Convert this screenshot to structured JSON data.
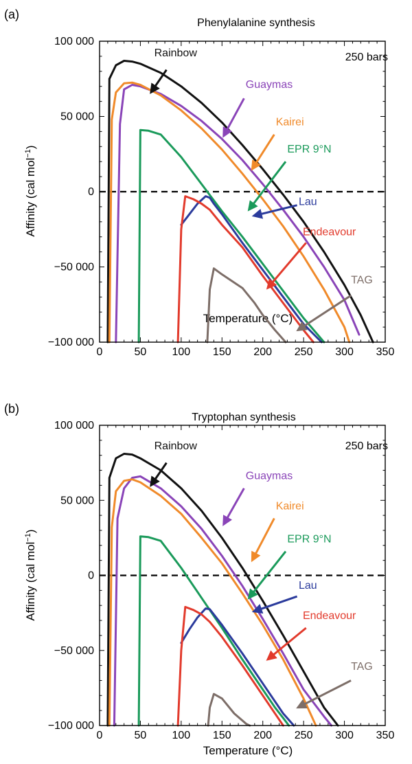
{
  "panels": [
    {
      "panel_label": "(a)",
      "chart_data": {
        "type": "line",
        "title": "Phenylalanine synthesis",
        "annotation": "250 bars",
        "xlabel": "Temperature (°C)",
        "ylabel_main": "Affinity (cal mol",
        "ylabel_sup": "−1",
        "ylabel_end": ")",
        "xlim": [
          0,
          350
        ],
        "ylim": [
          -100000,
          100000
        ],
        "xticks": [
          0,
          50,
          100,
          150,
          200,
          250,
          300,
          350
        ],
        "yticks": [
          -100000,
          -50000,
          0,
          50000,
          100000
        ],
        "ytick_labels": [
          "−100 000",
          "−50 000",
          "0",
          "50 000",
          "100 000"
        ],
        "zero_line": "dashed",
        "series": [
          {
            "name": "Rainbow",
            "color": "#111111",
            "x": [
              10,
              12,
              20,
              30,
              40,
              50,
              75,
              100,
              125,
              150,
              175,
              200,
              225,
              250,
              275,
              300,
              320,
              335
            ],
            "y": [
              -100000,
              75000,
              84000,
              87000,
              86500,
              85000,
              79000,
              70000,
              59000,
              46000,
              31000,
              15000,
              -2000,
              -20000,
              -40000,
              -62000,
              -82000,
              -100000
            ]
          },
          {
            "name": "Guaymas",
            "color": "#8a44b8",
            "x": [
              20,
              25,
              30,
              40,
              50,
              75,
              100,
              125,
              150,
              175,
              200,
              225,
              250,
              275,
              300,
              318
            ],
            "y": [
              -100000,
              45000,
              68000,
              71000,
              70000,
              65000,
              57000,
              47000,
              35000,
              21000,
              5000,
              -12000,
              -30000,
              -50000,
              -72000,
              -95000
            ]
          },
          {
            "name": "Kairei",
            "color": "#f08a2a",
            "x": [
              12,
              15,
              20,
              30,
              40,
              50,
              75,
              100,
              125,
              150,
              175,
              200,
              225,
              250,
              275,
              300,
              306
            ],
            "y": [
              -100000,
              48000,
              66000,
              72000,
              72500,
              71000,
              64000,
              54000,
              42000,
              28000,
              12000,
              -5000,
              -23000,
              -43000,
              -65000,
              -90000,
              -100000
            ]
          },
          {
            "name": "EPR 9°N",
            "color": "#1a9a5a",
            "x": [
              48,
              50,
              60,
              75,
              100,
              125,
              150,
              175,
              200,
              225,
              250,
              275
            ],
            "y": [
              -100000,
              41000,
              40500,
              38000,
              23000,
              5000,
              -13000,
              -30000,
              -48000,
              -66000,
              -84000,
              -100000
            ]
          },
          {
            "name": "Lau",
            "color": "#2b3b9c",
            "x": [
              100,
              110,
              120,
              130,
              135,
              140,
              150,
              175,
              200,
              225,
              250,
              272
            ],
            "y": [
              -22000,
              -15000,
              -8000,
              -3000,
              -4000,
              -8000,
              -15000,
              -34000,
              -52000,
              -70000,
              -88000,
              -100000
            ]
          },
          {
            "name": "Endeavour",
            "color": "#e23a2c",
            "x": [
              96,
              100,
              105,
              115,
              125,
              135,
              150,
              175,
              200,
              225,
              250,
              262
            ],
            "y": [
              -100000,
              -25000,
              -3000,
              -5000,
              -8000,
              -12000,
              -22000,
              -37000,
              -56000,
              -74000,
              -92000,
              -100000
            ]
          },
          {
            "name": "TAG",
            "color": "#7d6e68",
            "x": [
              132,
              135,
              140,
              150,
              175,
              190,
              200,
              215,
              228
            ],
            "y": [
              -100000,
              -65000,
              -51000,
              -55000,
              -64000,
              -74000,
              -82000,
              -92000,
              -100000
            ]
          }
        ],
        "labels": [
          {
            "series": "Rainbow",
            "text": "Rainbow",
            "at": [
              67,
              90000
            ]
          },
          {
            "series": "Guaymas",
            "text": "Guaymas",
            "at": [
              179,
              69000
            ]
          },
          {
            "series": "Kairei",
            "text": "Kairei",
            "at": [
              216,
              44000
            ]
          },
          {
            "series": "EPR 9°N",
            "text": "EPR 9°N",
            "at": [
              230,
              26000
            ]
          },
          {
            "series": "Lau",
            "text": "Lau",
            "at": [
              244,
              -9000
            ]
          },
          {
            "series": "Endeavour",
            "text": "Endeavour",
            "at": [
              249,
              -29000
            ]
          },
          {
            "series": "TAG",
            "text": "TAG",
            "at": [
              308,
              -61000
            ]
          }
        ],
        "arrows": [
          {
            "series": "Rainbow",
            "from": [
              82,
              81000
            ],
            "to": [
              63,
              66000
            ]
          },
          {
            "series": "Guaymas",
            "from": [
              177,
              62000
            ],
            "to": [
              152,
              37000
            ]
          },
          {
            "series": "Kairei",
            "from": [
              214,
              38000
            ],
            "to": [
              187,
              15000
            ]
          },
          {
            "series": "EPR 9°N",
            "from": [
              228,
              20000
            ],
            "to": [
              183,
              -12000
            ]
          },
          {
            "series": "Lau",
            "from": [
              242,
              -9000
            ],
            "to": [
              189,
              -16000
            ]
          },
          {
            "series": "Endeavour",
            "from": [
              253,
              -34000
            ],
            "to": [
              206,
              -64000
            ]
          },
          {
            "series": "TAG",
            "from": [
              308,
              -69000
            ],
            "to": [
              243,
              -92000
            ]
          }
        ]
      }
    },
    {
      "panel_label": "(b)",
      "chart_data": {
        "type": "line",
        "title": "Tryptophan synthesis",
        "annotation": "250 bars",
        "xlabel": "Temperature (°C)",
        "ylabel_main": "Affinity (cal mol",
        "ylabel_sup": "−1",
        "ylabel_end": ")",
        "xlim": [
          0,
          350
        ],
        "ylim": [
          -100000,
          100000
        ],
        "xticks": [
          0,
          50,
          100,
          150,
          200,
          250,
          300,
          350
        ],
        "yticks": [
          -100000,
          -50000,
          0,
          50000,
          100000
        ],
        "ytick_labels": [
          "−100 000",
          "−50 000",
          "0",
          "50 000",
          "100 000"
        ],
        "zero_line": "dashed",
        "series": [
          {
            "name": "Rainbow",
            "color": "#111111",
            "x": [
              10,
              12,
              20,
              30,
              40,
              50,
              75,
              100,
              125,
              150,
              175,
              200,
              225,
              250,
              275,
              292
            ],
            "y": [
              -100000,
              65000,
              78000,
              81000,
              80500,
              78000,
              70000,
              58000,
              43000,
              25000,
              5000,
              -17000,
              -40000,
              -64000,
              -88000,
              -100000
            ]
          },
          {
            "name": "Guaymas",
            "color": "#8a44b8",
            "x": [
              18,
              22,
              30,
              40,
              50,
              75,
              100,
              125,
              150,
              175,
              200,
              225,
              250,
              275,
              284
            ],
            "y": [
              -100000,
              38000,
              58000,
              65000,
              66000,
              58000,
              46000,
              31000,
              13000,
              -7000,
              -29000,
              -52000,
              -76000,
              -94000,
              -100000
            ]
          },
          {
            "name": "Kairei",
            "color": "#f08a2a",
            "x": [
              12,
              15,
              20,
              30,
              40,
              50,
              75,
              100,
              125,
              150,
              175,
              200,
              225,
              250,
              265
            ],
            "y": [
              -100000,
              32000,
              56000,
              63000,
              64000,
              62000,
              53000,
              41000,
              25000,
              8000,
              -12000,
              -33000,
              -56000,
              -82000,
              -100000
            ]
          },
          {
            "name": "EPR 9°N",
            "color": "#1a9a5a",
            "x": [
              48,
              50,
              60,
              75,
              100,
              125,
              150,
              175,
              200,
              215,
              225,
              232
            ],
            "y": [
              -100000,
              26000,
              25500,
              23000,
              5000,
              -15000,
              -35000,
              -56000,
              -76000,
              -88000,
              -95000,
              -100000
            ]
          },
          {
            "name": "Lau",
            "color": "#2b3b9c",
            "x": [
              100,
              110,
              120,
              130,
              135,
              140,
              150,
              175,
              200,
              225,
              238
            ],
            "y": [
              -45000,
              -36000,
              -28000,
              -22000,
              -22500,
              -26000,
              -33000,
              -52000,
              -72000,
              -92000,
              -100000
            ]
          },
          {
            "name": "Endeavour",
            "color": "#e23a2c",
            "x": [
              96,
              100,
              105,
              115,
              125,
              135,
              150,
              175,
              200,
              225
            ],
            "y": [
              -100000,
              -50000,
              -21000,
              -23000,
              -26000,
              -31000,
              -41000,
              -60000,
              -80000,
              -100000
            ]
          },
          {
            "name": "TAG",
            "color": "#7d6e68",
            "x": [
              133,
              135,
              140,
              150,
              165,
              180,
              184
            ],
            "y": [
              -100000,
              -88000,
              -79000,
              -82000,
              -92000,
              -99000,
              -100000
            ]
          }
        ],
        "labels": [
          {
            "series": "Rainbow",
            "text": "Rainbow",
            "at": [
              67,
              84000
            ]
          },
          {
            "series": "Guaymas",
            "text": "Guaymas",
            "at": [
              179,
              64000
            ]
          },
          {
            "series": "Kairei",
            "text": "Kairei",
            "at": [
              216,
              44000
            ]
          },
          {
            "series": "EPR 9°N",
            "text": "EPR 9°N",
            "at": [
              230,
              22000
            ]
          },
          {
            "series": "Lau",
            "text": "Lau",
            "at": [
              244,
              -9000
            ]
          },
          {
            "series": "Endeavour",
            "text": "Endeavour",
            "at": [
              249,
              -29000
            ]
          },
          {
            "series": "TAG",
            "text": "TAG",
            "at": [
              308,
              -63000
            ]
          }
        ],
        "arrows": [
          {
            "series": "Rainbow",
            "from": [
              82,
              75000
            ],
            "to": [
              63,
              60000
            ]
          },
          {
            "series": "Guaymas",
            "from": [
              177,
              58000
            ],
            "to": [
              152,
              34000
            ]
          },
          {
            "series": "Kairei",
            "from": [
              214,
              38000
            ],
            "to": [
              187,
              10000
            ]
          },
          {
            "series": "EPR 9°N",
            "from": [
              228,
              16000
            ],
            "to": [
              183,
              -15000
            ]
          },
          {
            "series": "Lau",
            "from": [
              242,
              -14000
            ],
            "to": [
              189,
              -24000
            ]
          },
          {
            "series": "Endeavour",
            "from": [
              253,
              -35000
            ],
            "to": [
              206,
              -56000
            ]
          },
          {
            "series": "TAG",
            "from": [
              308,
              -70000
            ],
            "to": [
              243,
              -88000
            ]
          }
        ]
      }
    }
  ]
}
